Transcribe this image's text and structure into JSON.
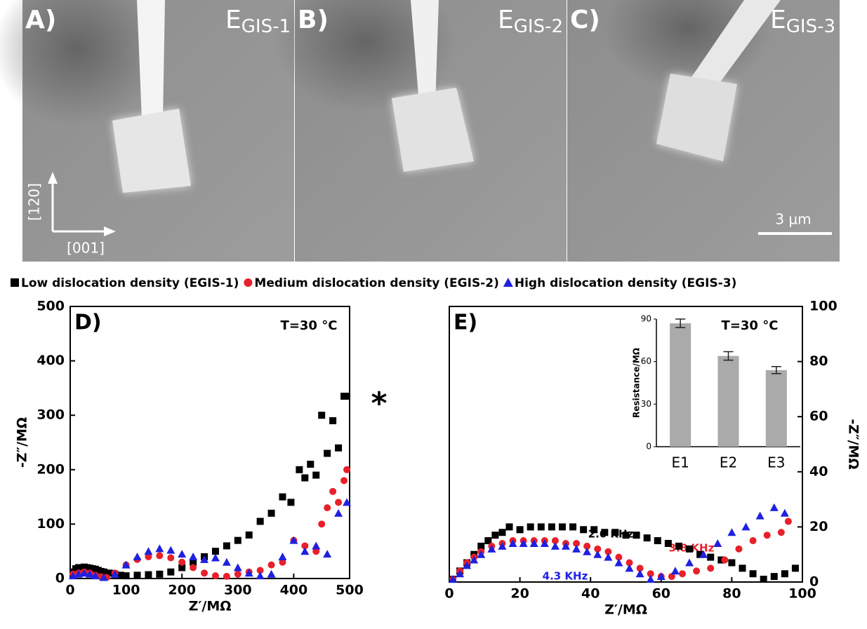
{
  "panels": [
    {
      "label": "A)",
      "energy": "E",
      "energy_sub": "GIS-1"
    },
    {
      "label": "B)",
      "energy": "E",
      "energy_sub": "GIS-2"
    },
    {
      "label": "C)",
      "energy": "E",
      "energy_sub": "GIS-3"
    }
  ],
  "direction_labels": [
    "[120]",
    "[001]"
  ],
  "scale_bar": "3 µm",
  "chart_data": [
    {
      "type": "scatter",
      "panel_label": "D)",
      "x_label": "Z′/MΩ",
      "y_label": "-Z″/MΩ",
      "xlim": [
        0,
        500
      ],
      "xticks": [
        0,
        100,
        200,
        300,
        400,
        500
      ],
      "ylim": [
        0,
        500
      ],
      "yticks": [
        0,
        100,
        200,
        300,
        400,
        500
      ],
      "y_axis": "left",
      "annotations": [
        {
          "text": "T=30 °C",
          "color": "#000000"
        },
        {
          "text": "*",
          "color": "#000000"
        }
      ],
      "series": [
        {
          "name": "Low dislocation density (EGIS-1)",
          "color": "#000000",
          "marker": "square",
          "x": [
            5,
            10,
            15,
            20,
            25,
            30,
            35,
            40,
            45,
            50,
            55,
            60,
            70,
            80,
            90,
            100,
            120,
            140,
            160,
            180,
            200,
            220,
            240,
            260,
            280,
            300,
            320,
            340,
            360,
            380,
            395,
            410,
            420,
            430,
            440,
            450,
            460,
            470,
            480,
            490,
            495
          ],
          "values": [
            12,
            18,
            20,
            20,
            21,
            20,
            19,
            18,
            17,
            15,
            13,
            12,
            10,
            8,
            6,
            5,
            6,
            7,
            8,
            12,
            20,
            30,
            40,
            50,
            60,
            70,
            80,
            105,
            120,
            150,
            140,
            200,
            185,
            210,
            190,
            300,
            230,
            290,
            240,
            335,
            335
          ]
        },
        {
          "name": "Medium dislocation density (EGIS-2)",
          "color": "#e8202a",
          "marker": "circle",
          "x": [
            5,
            15,
            25,
            35,
            45,
            55,
            65,
            80,
            100,
            120,
            140,
            160,
            180,
            200,
            220,
            240,
            260,
            280,
            300,
            320,
            340,
            360,
            380,
            400,
            420,
            440,
            450,
            460,
            470,
            480,
            490,
            495
          ],
          "values": [
            8,
            10,
            12,
            10,
            6,
            3,
            2,
            10,
            25,
            35,
            40,
            42,
            38,
            30,
            20,
            10,
            5,
            4,
            8,
            12,
            15,
            25,
            30,
            70,
            60,
            50,
            100,
            130,
            160,
            140,
            180,
            200
          ]
        },
        {
          "name": "High dislocation density (EGIS-3)",
          "color": "#1f20e0",
          "marker": "triangle",
          "x": [
            5,
            15,
            25,
            35,
            45,
            60,
            80,
            100,
            120,
            140,
            160,
            180,
            200,
            220,
            240,
            260,
            280,
            300,
            320,
            340,
            360,
            380,
            400,
            420,
            440,
            460,
            480,
            495
          ],
          "values": [
            5,
            8,
            10,
            8,
            5,
            2,
            8,
            25,
            40,
            50,
            55,
            52,
            45,
            40,
            35,
            38,
            30,
            20,
            10,
            5,
            8,
            40,
            70,
            50,
            60,
            45,
            120,
            140
          ]
        }
      ]
    },
    {
      "type": "scatter",
      "panel_label": "E)",
      "x_label": "Z′/MΩ",
      "y_label": "-Z″/MΩ",
      "xlim": [
        0,
        100
      ],
      "xticks": [
        0,
        20,
        40,
        60,
        80,
        100
      ],
      "ylim": [
        0,
        100
      ],
      "yticks": [
        0,
        20,
        40,
        60,
        80,
        100
      ],
      "y_axis": "right",
      "annotations": [
        {
          "text": "T=30 °C",
          "color": "#000000"
        },
        {
          "text": "2.6 KHz",
          "color": "#000000"
        },
        {
          "text": "3.8 KHz",
          "color": "#e8202a"
        },
        {
          "text": "4.3 KHz",
          "color": "#1f20e0"
        }
      ],
      "series": [
        {
          "color": "#000000",
          "marker": "square",
          "x": [
            1,
            3,
            5,
            7,
            9,
            11,
            13,
            15,
            17,
            20,
            23,
            26,
            29,
            32,
            35,
            38,
            41,
            44,
            47,
            50,
            53,
            56,
            59,
            62,
            65,
            68,
            71,
            74,
            77,
            80,
            83,
            86,
            89,
            92,
            95,
            98
          ],
          "values": [
            1,
            4,
            7,
            10,
            13,
            15,
            17,
            18,
            20,
            19,
            20,
            20,
            20,
            20,
            20,
            19,
            19,
            18,
            18,
            17,
            17,
            16,
            15,
            14,
            13,
            12,
            10,
            9,
            8,
            7,
            5,
            3,
            1,
            2,
            3,
            5
          ]
        },
        {
          "color": "#e8202a",
          "marker": "circle",
          "x": [
            1,
            3,
            5,
            7,
            9,
            12,
            15,
            18,
            21,
            24,
            27,
            30,
            33,
            36,
            39,
            42,
            45,
            48,
            51,
            54,
            57,
            60,
            63,
            66,
            70,
            74,
            78,
            82,
            86,
            90,
            94,
            96
          ],
          "values": [
            1,
            4,
            7,
            9,
            11,
            13,
            14,
            15,
            15,
            15,
            15,
            15,
            14,
            14,
            13,
            12,
            11,
            9,
            7,
            5,
            3,
            2,
            2,
            3,
            4,
            5,
            8,
            12,
            15,
            17,
            18,
            22
          ]
        },
        {
          "color": "#1f20e0",
          "marker": "triangle",
          "x": [
            1,
            3,
            5,
            7,
            9,
            12,
            15,
            18,
            21,
            24,
            27,
            30,
            33,
            36,
            39,
            42,
            45,
            48,
            51,
            54,
            57,
            60,
            64,
            68,
            72,
            76,
            80,
            84,
            88,
            92,
            95
          ],
          "values": [
            1,
            3,
            6,
            8,
            10,
            12,
            13,
            14,
            14,
            14,
            14,
            13,
            13,
            12,
            11,
            10,
            9,
            7,
            5,
            3,
            1,
            2,
            4,
            7,
            10,
            14,
            18,
            20,
            24,
            27,
            25
          ]
        }
      ]
    },
    {
      "type": "bar",
      "y_label": "Resistance/MΩ",
      "categories": [
        "E1",
        "E2",
        "E3"
      ],
      "values": [
        87,
        64,
        54
      ],
      "errors": [
        3,
        3,
        2.5
      ],
      "color": "#aaaaaa",
      "ylim": [
        0,
        90
      ],
      "yticks": [
        0,
        30,
        60,
        90
      ]
    }
  ]
}
